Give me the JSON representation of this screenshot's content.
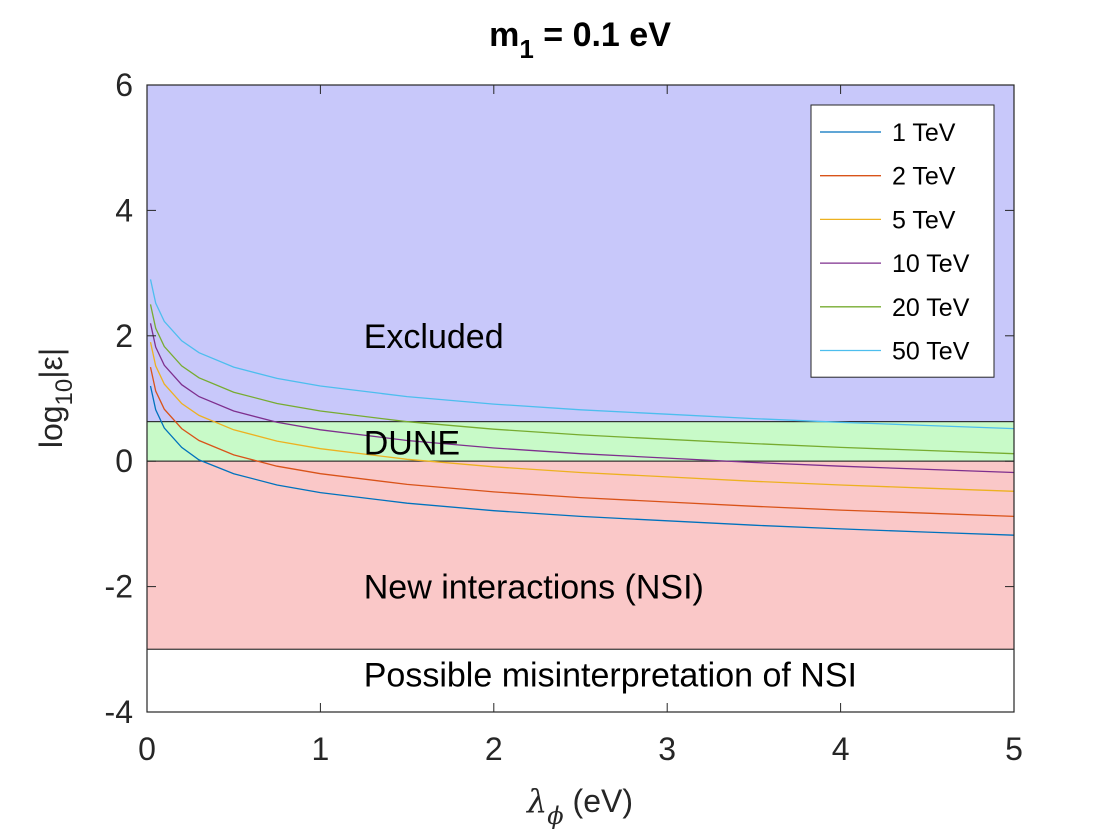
{
  "chart_data": {
    "type": "line",
    "title": {
      "main": "m",
      "sub": "1",
      "rest": " = 0.1 eV"
    },
    "xlabel": {
      "symbol": "λ",
      "sub": "ϕ",
      "rest": " (eV)"
    },
    "ylabel": {
      "pre": "log",
      "sub": "10",
      "rest": "|ε|"
    },
    "xlim": [
      0,
      5
    ],
    "ylim": [
      -4,
      6
    ],
    "xticks": [
      0,
      1,
      2,
      3,
      4,
      5
    ],
    "xtick_labels": [
      "0",
      "1",
      "2",
      "3",
      "4",
      "5"
    ],
    "yticks": [
      -4,
      -2,
      0,
      2,
      4,
      6
    ],
    "ytick_labels": [
      "-4",
      "-2",
      "0",
      "2",
      "4",
      "6"
    ],
    "grid": false,
    "legend_position": "top-right",
    "regions": [
      {
        "label": "Excluded",
        "y_from": 0.63,
        "y_to": 6,
        "color": "#c8c8fa",
        "label_x": 1.25,
        "label_y": 2.0
      },
      {
        "label": "DUNE",
        "y_from": 0,
        "y_to": 0.63,
        "color": "#c8fac8",
        "label_x": 1.25,
        "label_y": 0.3
      },
      {
        "label": "New interactions (NSI)",
        "y_from": -3,
        "y_to": 0,
        "color": "#fac8c8",
        "label_x": 1.25,
        "label_y": -2.0
      },
      {
        "label": "Possible misinterpretation of NSI",
        "y_from": -4,
        "y_to": -3,
        "color": "#ffffff",
        "label_x": 1.25,
        "label_y": -3.4
      }
    ],
    "series": [
      {
        "name": "1 TeV",
        "color": "#0072bd",
        "x": [
          0.02,
          0.05,
          0.1,
          0.2,
          0.3,
          0.5,
          0.75,
          1.0,
          1.5,
          2.0,
          2.5,
          3.0,
          3.5,
          4.0,
          4.5,
          5.0
        ],
        "y": [
          1.2,
          0.82,
          0.53,
          0.22,
          0.02,
          -0.2,
          -0.38,
          -0.5,
          -0.67,
          -0.79,
          -0.88,
          -0.95,
          -1.02,
          -1.08,
          -1.13,
          -1.18
        ]
      },
      {
        "name": "2 TeV",
        "color": "#d95319",
        "x": [
          0.02,
          0.05,
          0.1,
          0.2,
          0.3,
          0.5,
          0.75,
          1.0,
          1.5,
          2.0,
          2.5,
          3.0,
          3.5,
          4.0,
          4.5,
          5.0
        ],
        "y": [
          1.5,
          1.12,
          0.83,
          0.52,
          0.33,
          0.1,
          -0.08,
          -0.2,
          -0.37,
          -0.49,
          -0.58,
          -0.65,
          -0.72,
          -0.78,
          -0.83,
          -0.88
        ]
      },
      {
        "name": "5 TeV",
        "color": "#edb120",
        "x": [
          0.02,
          0.05,
          0.1,
          0.2,
          0.3,
          0.5,
          0.75,
          1.0,
          1.5,
          2.0,
          2.5,
          3.0,
          3.5,
          4.0,
          4.5,
          5.0
        ],
        "y": [
          1.9,
          1.52,
          1.23,
          0.92,
          0.73,
          0.5,
          0.32,
          0.2,
          0.03,
          -0.09,
          -0.18,
          -0.25,
          -0.32,
          -0.38,
          -0.43,
          -0.48
        ]
      },
      {
        "name": "10 TeV",
        "color": "#7e2f8e",
        "x": [
          0.02,
          0.05,
          0.1,
          0.2,
          0.3,
          0.5,
          0.75,
          1.0,
          1.5,
          2.0,
          2.5,
          3.0,
          3.5,
          4.0,
          4.5,
          5.0
        ],
        "y": [
          2.2,
          1.82,
          1.53,
          1.22,
          1.03,
          0.8,
          0.62,
          0.5,
          0.33,
          0.21,
          0.12,
          0.05,
          -0.02,
          -0.08,
          -0.13,
          -0.18
        ]
      },
      {
        "name": "20 TeV",
        "color": "#77ac30",
        "x": [
          0.02,
          0.05,
          0.1,
          0.2,
          0.3,
          0.5,
          0.75,
          1.0,
          1.5,
          2.0,
          2.5,
          3.0,
          3.5,
          4.0,
          4.5,
          5.0
        ],
        "y": [
          2.5,
          2.12,
          1.83,
          1.52,
          1.33,
          1.1,
          0.92,
          0.8,
          0.63,
          0.51,
          0.42,
          0.35,
          0.28,
          0.22,
          0.17,
          0.12
        ]
      },
      {
        "name": "50 TeV",
        "color": "#4dbeee",
        "x": [
          0.02,
          0.05,
          0.1,
          0.2,
          0.3,
          0.5,
          0.75,
          1.0,
          1.5,
          2.0,
          2.5,
          3.0,
          3.5,
          4.0,
          4.5,
          5.0
        ],
        "y": [
          2.9,
          2.52,
          2.23,
          1.92,
          1.73,
          1.5,
          1.32,
          1.2,
          1.03,
          0.91,
          0.82,
          0.75,
          0.68,
          0.62,
          0.57,
          0.52
        ]
      }
    ]
  }
}
